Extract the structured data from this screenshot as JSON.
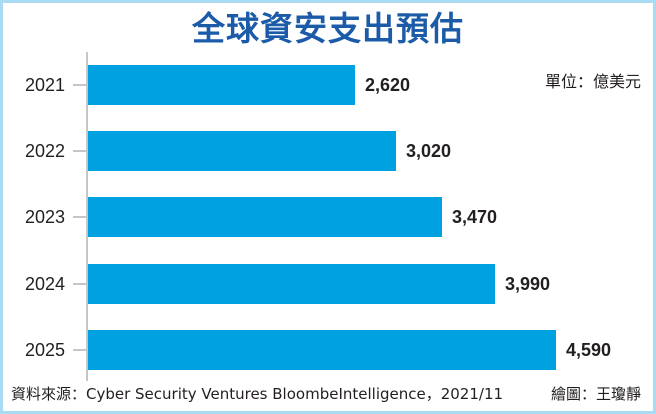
{
  "header": {
    "title": "全球資安支出預估",
    "units": "單位：億美元"
  },
  "footer": {
    "source": "資料來源：Cyber Security Ventures BloombeIntelligence，2021/11",
    "credit": "繪圖：王瓊靜"
  },
  "colors": {
    "bar": "#00a1e1",
    "title": "#1b5ba8",
    "frame_border": "#a9dbf3",
    "axis": "#c6c6c6",
    "text": "#231f20"
  },
  "chart_data": {
    "type": "bar",
    "orientation": "horizontal",
    "title": "全球資安支出預估",
    "subtitle": "單位：億美元",
    "categories": [
      "2021",
      "2022",
      "2023",
      "2024",
      "2025"
    ],
    "values": [
      2620,
      3020,
      3470,
      3990,
      4590
    ],
    "value_labels": [
      "2,620",
      "3,020",
      "3,470",
      "3,990",
      "4,590"
    ],
    "xlabel": "",
    "ylabel": "",
    "xlim": [
      0,
      5000
    ],
    "grid": false,
    "legend": null,
    "source": "資料來源：Cyber Security Ventures BloombeIntelligence，2021/11",
    "credit": "繪圖：王瓊靜"
  }
}
